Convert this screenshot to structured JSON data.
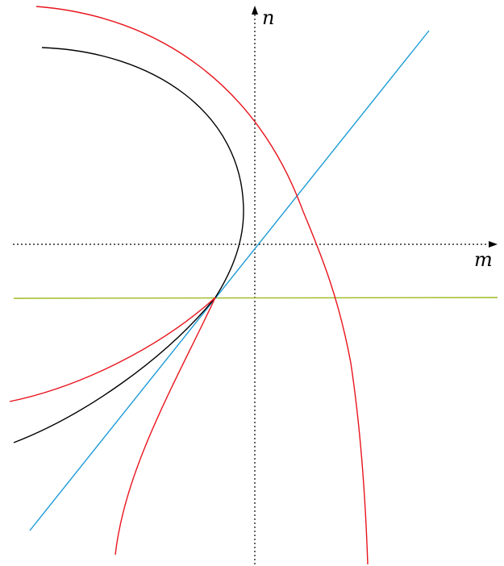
{
  "axes": {
    "horizontal_label": "m",
    "vertical_label": "n",
    "style": "dotted"
  },
  "curves": [
    {
      "id": "black-parabola",
      "color": "#000000"
    },
    {
      "id": "red-curve-upper",
      "color": "#e8141c"
    },
    {
      "id": "red-curve-lower",
      "color": "#e8141c"
    },
    {
      "id": "blue-tangent-line",
      "color": "#1d9bd7"
    },
    {
      "id": "green-horizontal-line",
      "color": "#9cba1f"
    }
  ]
}
